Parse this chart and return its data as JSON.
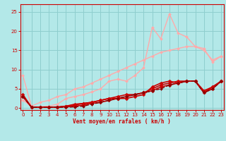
{
  "background_color": "#b3e8e8",
  "grid_color": "#8ecece",
  "xlabel": "Vent moyen/en rafales ( km/h )",
  "xlabel_color": "#cc0000",
  "tick_color": "#cc0000",
  "ylim": [
    -0.5,
    27
  ],
  "xlim": [
    -0.3,
    23.3
  ],
  "yticks": [
    0,
    5,
    10,
    15,
    20,
    25
  ],
  "xticks": [
    0,
    1,
    2,
    3,
    4,
    5,
    6,
    7,
    8,
    9,
    10,
    11,
    12,
    13,
    14,
    15,
    16,
    17,
    18,
    19,
    20,
    21,
    22,
    23
  ],
  "series": [
    {
      "x": [
        0,
        1,
        2,
        3,
        4,
        5,
        6,
        7,
        8,
        9,
        10,
        11,
        12,
        13,
        14,
        15,
        16,
        17,
        18,
        19,
        20,
        21,
        22,
        23
      ],
      "y": [
        8.5,
        0.3,
        0.3,
        0.5,
        1.0,
        2.5,
        3.0,
        3.5,
        4.2,
        5.0,
        7.0,
        7.5,
        7.0,
        8.5,
        10.5,
        21.0,
        18.0,
        24.5,
        19.5,
        18.5,
        16.0,
        15.5,
        12.0,
        13.5
      ],
      "color": "#ffaaaa",
      "linewidth": 1.0,
      "marker": "D",
      "markersize": 2.0,
      "linestyle": "-"
    },
    {
      "x": [
        0,
        1,
        2,
        3,
        4,
        5,
        6,
        7,
        8,
        9,
        10,
        11,
        12,
        13,
        14,
        15,
        16,
        17,
        18,
        19,
        20,
        21,
        22,
        23
      ],
      "y": [
        2.0,
        0.5,
        1.5,
        2.0,
        3.0,
        3.5,
        5.0,
        5.5,
        6.5,
        7.5,
        8.5,
        9.5,
        10.5,
        11.5,
        12.5,
        13.5,
        14.5,
        15.0,
        15.5,
        16.0,
        16.0,
        15.0,
        12.5,
        13.5
      ],
      "color": "#ffaaaa",
      "linewidth": 1.0,
      "marker": "D",
      "markersize": 2.0,
      "linestyle": "-"
    },
    {
      "x": [
        0,
        1,
        2,
        3,
        4,
        5,
        6,
        7,
        8,
        9,
        10,
        11,
        12,
        13,
        14,
        15,
        16,
        17,
        18,
        19,
        20,
        21,
        22,
        23
      ],
      "y": [
        3.5,
        0.2,
        0.2,
        0.2,
        0.3,
        0.5,
        1.0,
        1.2,
        1.5,
        2.0,
        2.5,
        2.5,
        2.5,
        3.0,
        3.5,
        5.5,
        6.5,
        7.0,
        6.5,
        7.0,
        7.0,
        4.0,
        5.5,
        7.0
      ],
      "color": "#cc0000",
      "linewidth": 1.2,
      "marker": "D",
      "markersize": 2.5,
      "linestyle": "-"
    },
    {
      "x": [
        0,
        1,
        2,
        3,
        4,
        5,
        6,
        7,
        8,
        9,
        10,
        11,
        12,
        13,
        14,
        15,
        16,
        17,
        18,
        19,
        20,
        21,
        22,
        23
      ],
      "y": [
        3.0,
        0.2,
        0.2,
        0.2,
        0.2,
        0.5,
        0.8,
        1.2,
        1.5,
        2.0,
        2.5,
        3.0,
        3.5,
        3.5,
        4.0,
        5.0,
        6.0,
        6.5,
        7.0,
        7.0,
        7.0,
        4.5,
        5.5,
        7.0
      ],
      "color": "#cc0000",
      "linewidth": 1.2,
      "marker": "D",
      "markersize": 2.5,
      "linestyle": "-"
    },
    {
      "x": [
        0,
        1,
        2,
        3,
        4,
        5,
        6,
        7,
        8,
        9,
        10,
        11,
        12,
        13,
        14,
        15,
        16,
        17,
        18,
        19,
        20,
        21,
        22,
        23
      ],
      "y": [
        3.0,
        0.2,
        0.2,
        0.2,
        0.2,
        0.3,
        0.5,
        0.8,
        1.2,
        1.5,
        2.0,
        2.5,
        3.0,
        3.5,
        4.0,
        4.5,
        5.5,
        6.0,
        6.5,
        7.0,
        7.0,
        4.0,
        5.0,
        7.0
      ],
      "color": "#cc0000",
      "linewidth": 1.2,
      "marker": "D",
      "markersize": 2.5,
      "linestyle": "-"
    },
    {
      "x": [
        0,
        1,
        2,
        3,
        4,
        5,
        6,
        7,
        8,
        9,
        10,
        11,
        12,
        13,
        14,
        15,
        16,
        17,
        18,
        19,
        20,
        21,
        22,
        23
      ],
      "y": [
        3.0,
        0.2,
        0.2,
        0.2,
        0.2,
        0.2,
        0.3,
        0.5,
        1.0,
        1.5,
        2.0,
        2.5,
        3.0,
        3.5,
        4.0,
        4.5,
        5.0,
        6.0,
        6.5,
        7.0,
        7.0,
        4.0,
        5.0,
        7.0
      ],
      "color": "#880000",
      "linewidth": 1.0,
      "marker": "D",
      "markersize": 2.0,
      "linestyle": "--"
    }
  ],
  "spine_color": "#cc0000",
  "figsize": [
    3.2,
    2.0
  ],
  "dpi": 100
}
